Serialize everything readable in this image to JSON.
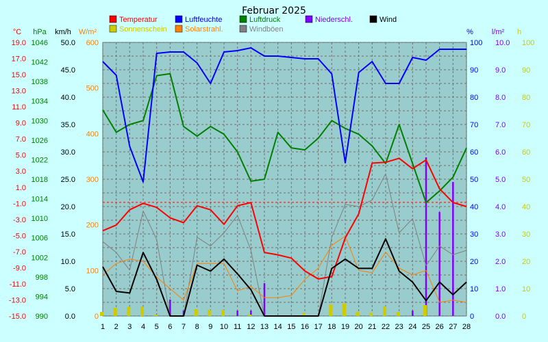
{
  "chart_data": {
    "type": "line",
    "title": "Februar 2025",
    "x": [
      1,
      2,
      3,
      4,
      5,
      6,
      7,
      8,
      9,
      10,
      11,
      12,
      13,
      14,
      15,
      16,
      17,
      18,
      19,
      20,
      21,
      22,
      23,
      24,
      25,
      26,
      27,
      28
    ],
    "axes": [
      {
        "id": "temp",
        "unit": "°C",
        "side": "left",
        "color": "#ff0000",
        "min": -15,
        "max": 19,
        "ticks": [
          "-15.0",
          "-13.0",
          "-11.0",
          "-9.0",
          "-7.0",
          "-5.0",
          "-3.0",
          "-1.0",
          "1.0",
          "3.0",
          "5.0",
          "7.0",
          "9.0",
          "11.0",
          "13.0",
          "15.0",
          "17.0",
          "19.0"
        ]
      },
      {
        "id": "press",
        "unit": "hPa",
        "side": "left",
        "color": "#008000",
        "min": 990,
        "max": 1046,
        "ticks": [
          "990",
          "994",
          "998",
          "1002",
          "1006",
          "1010",
          "1014",
          "1018",
          "1022",
          "1026",
          "1030",
          "1034",
          "1038",
          "1042",
          "1046"
        ]
      },
      {
        "id": "wind",
        "unit": "km/h",
        "side": "left",
        "color": "#000000",
        "min": 0,
        "max": 50,
        "ticks": [
          "0.0",
          "5.0",
          "10.0",
          "15.0",
          "20.0",
          "25.0",
          "30.0",
          "35.0",
          "40.0",
          "45.0",
          "50.0"
        ]
      },
      {
        "id": "solar",
        "unit": "W/m²",
        "side": "left",
        "color": "#ff8000",
        "min": 0,
        "max": 600,
        "ticks": [
          "0",
          "100",
          "200",
          "300",
          "400",
          "500",
          "600"
        ]
      },
      {
        "id": "hum",
        "unit": "%",
        "side": "right",
        "color": "#0000ff",
        "min": 0,
        "max": 100,
        "ticks": [
          "0",
          "10",
          "20",
          "30",
          "40",
          "50",
          "60",
          "70",
          "80",
          "90",
          "100"
        ]
      },
      {
        "id": "rain",
        "unit": "l/m²",
        "side": "right",
        "color": "#8000ff",
        "min": 0,
        "max": 10,
        "ticks": [
          "0.0",
          "1.0",
          "2.0",
          "3.0",
          "4.0",
          "5.0",
          "6.0",
          "7.0",
          "8.0",
          "9.0",
          "10.0"
        ]
      },
      {
        "id": "sun",
        "unit": "h",
        "side": "right",
        "color": "#cccc00",
        "min": 0,
        "max": 100,
        "ticks": [
          "0",
          "10",
          "20",
          "30",
          "40",
          "50",
          "60",
          "70",
          "80",
          "90",
          "100"
        ]
      }
    ],
    "series": [
      {
        "name": "Temperatur",
        "axis": "temp",
        "color": "#ff0000",
        "kind": "line",
        "width": 2,
        "values": [
          -4.4,
          -3.7,
          -1.8,
          -1.0,
          -1.5,
          -2.8,
          -3.4,
          -1.3,
          -1.8,
          -3.6,
          -1.3,
          -0.9,
          -7.1,
          -7.4,
          -7.8,
          -9.4,
          -10.4,
          -10.1,
          -5.3,
          -2.3,
          4.0,
          4.1,
          4.6,
          3.3,
          4.4,
          0.8,
          -0.9,
          -1.4
        ]
      },
      {
        "name": "Luftfeuchte",
        "axis": "hum",
        "color": "#0000ff",
        "kind": "line",
        "width": 2,
        "values": [
          93,
          88,
          62,
          49,
          96,
          96.5,
          96.5,
          92.5,
          85,
          96.5,
          97,
          98,
          95,
          95,
          94.5,
          94,
          94,
          88.5,
          56,
          89,
          93,
          85,
          85,
          94.5,
          93.5,
          97.5,
          97.5,
          97.5
        ]
      },
      {
        "name": "Luftdruck",
        "axis": "press",
        "color": "#008000",
        "kind": "line",
        "width": 2,
        "values": [
          1032.2,
          1027.6,
          1029.2,
          1030.0,
          1039.2,
          1039.6,
          1028.8,
          1026.8,
          1028.8,
          1027.2,
          1023.6,
          1017.6,
          1018.0,
          1027.6,
          1024.4,
          1024.0,
          1026.4,
          1030.0,
          1028.4,
          1027.2,
          1024.8,
          1021.2,
          1029.2,
          1021.2,
          1013.2,
          1015.6,
          1018.4,
          1024.4
        ]
      },
      {
        "name": "Wind",
        "axis": "wind",
        "color": "#000000",
        "kind": "line",
        "width": 2,
        "values": [
          9.0,
          4.5,
          4.2,
          11.6,
          6.7,
          0,
          0,
          9.3,
          8.2,
          10.4,
          7.7,
          4.8,
          0,
          0,
          0,
          0,
          0,
          8.7,
          10.4,
          8.7,
          8.7,
          14.1,
          8.2,
          6.2,
          2.8,
          6.2,
          3.9,
          6.2
        ]
      },
      {
        "name": "Windböen",
        "axis": "wind",
        "color": "#808080",
        "kind": "line",
        "width": 1,
        "values": [
          13.6,
          11.6,
          8.4,
          19.2,
          14.0,
          0,
          0,
          14.4,
          12.8,
          15.2,
          18.4,
          12.0,
          0,
          0,
          0,
          0,
          0,
          14.4,
          20.4,
          20.0,
          21.2,
          26.0,
          15.2,
          17.8,
          9.2,
          12.8,
          11.2,
          12.0
        ]
      },
      {
        "name": "Solarstrahl.",
        "axis": "solar",
        "color": "#ff8000",
        "kind": "line",
        "width": 1,
        "values": [
          90,
          115,
          125,
          120,
          85,
          60,
          35,
          115,
          115,
          115,
          55,
          65,
          40,
          40,
          45,
          80,
          105,
          155,
          175,
          100,
          95,
          140,
          105,
          90,
          100,
          30,
          35,
          30
        ]
      },
      {
        "name": "Niederschl.",
        "axis": "rain",
        "color": "#8000ff",
        "kind": "bar",
        "values": [
          0,
          0,
          0,
          0,
          0,
          0.6,
          0.2,
          0,
          0,
          0,
          0.2,
          0.2,
          1.2,
          0,
          0,
          0,
          0,
          0,
          0,
          0,
          0,
          0,
          0,
          0.2,
          5.8,
          3.8,
          4.9,
          0
        ]
      },
      {
        "name": "Sonnenschein",
        "axis": "sun",
        "color": "#cccc00",
        "kind": "bar",
        "values": [
          1.5,
          3.0,
          3.4,
          3.4,
          0.5,
          0,
          0,
          2.5,
          2.2,
          2.2,
          0,
          0.5,
          0,
          0,
          0,
          1.2,
          0,
          4.2,
          4.6,
          1.6,
          1.2,
          3.5,
          1.5,
          0,
          4.0,
          0,
          0,
          0
        ]
      }
    ],
    "reference_line": {
      "axis": "press",
      "value": 1013.25,
      "color": "#ff0000",
      "style": "dashed"
    },
    "grid": true
  }
}
